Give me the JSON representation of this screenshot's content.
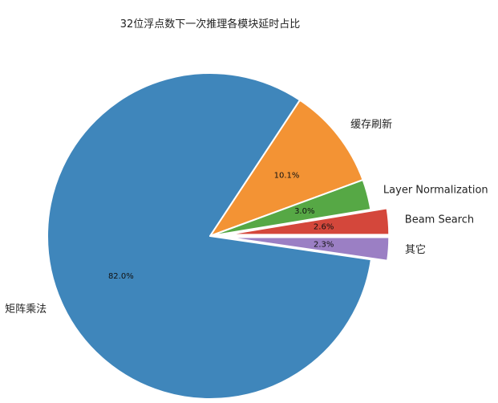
{
  "chart_data": {
    "type": "pie",
    "title": "32位浮点数下一次推理各模块延时占比",
    "start_angle_deg": 0,
    "direction": "clockwise",
    "legend": "none",
    "slices": [
      {
        "label": "其它",
        "value": 2.3,
        "pct_label": "2.3%",
        "color": "#9b7fc4",
        "explode": true
      },
      {
        "label": "矩阵乘法",
        "value": 82.0,
        "pct_label": "82.0%",
        "color": "#3f86bb",
        "explode": false
      },
      {
        "label": "缓存刷新",
        "value": 10.1,
        "pct_label": "10.1%",
        "color": "#f39334",
        "explode": false
      },
      {
        "label": "Layer Normalization",
        "value": 3.0,
        "pct_label": "3.0%",
        "color": "#56a845",
        "explode": false
      },
      {
        "label": "Beam Search",
        "value": 2.6,
        "pct_label": "2.6%",
        "color": "#d4473b",
        "explode": true
      }
    ]
  }
}
